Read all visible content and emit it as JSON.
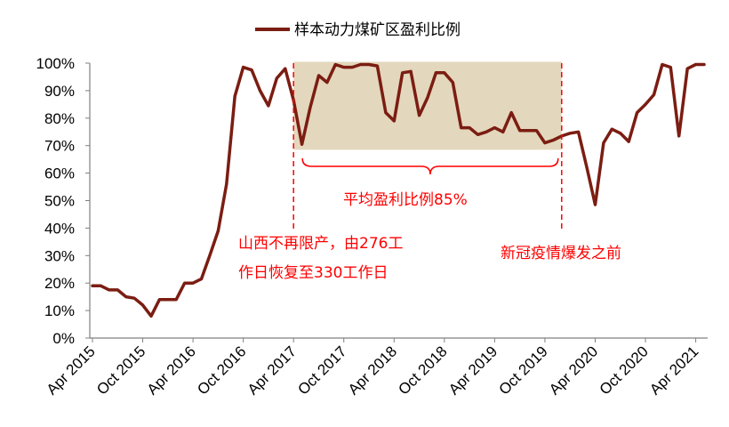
{
  "chart_data": {
    "type": "line",
    "title": "",
    "xlabel": "",
    "ylabel": "",
    "ylim": [
      0,
      100
    ],
    "yticks": [
      "0%",
      "10%",
      "20%",
      "30%",
      "40%",
      "50%",
      "60%",
      "70%",
      "80%",
      "90%",
      "100%"
    ],
    "xticks": [
      "Apr 2015",
      "Oct 2015",
      "Apr 2016",
      "Oct 2016",
      "Apr 2017",
      "Oct 2017",
      "Apr 2018",
      "Oct 2018",
      "Apr 2019",
      "Oct 2019",
      "Apr 2020",
      "Oct 2020",
      "Apr 2021"
    ],
    "legend": {
      "position": "top-center"
    },
    "series": [
      {
        "name": "样本动力煤矿区盈利比例",
        "color": "#7B1D12",
        "x": [
          "2015-04",
          "2015-05",
          "2015-06",
          "2015-07",
          "2015-08",
          "2015-09",
          "2015-10",
          "2015-11",
          "2015-12",
          "2016-01",
          "2016-02",
          "2016-03",
          "2016-04",
          "2016-05",
          "2016-06",
          "2016-07",
          "2016-08",
          "2016-09",
          "2016-10",
          "2016-11",
          "2016-12",
          "2017-01",
          "2017-02",
          "2017-03",
          "2017-04",
          "2017-05",
          "2017-06",
          "2017-07",
          "2017-08",
          "2017-09",
          "2017-10",
          "2017-11",
          "2017-12",
          "2018-01",
          "2018-02",
          "2018-03",
          "2018-04",
          "2018-05",
          "2018-06",
          "2018-07",
          "2018-08",
          "2018-09",
          "2018-10",
          "2018-11",
          "2018-12",
          "2019-01",
          "2019-02",
          "2019-03",
          "2019-04",
          "2019-05",
          "2019-06",
          "2019-07",
          "2019-08",
          "2019-09",
          "2019-10",
          "2019-11",
          "2019-12",
          "2020-01",
          "2020-02",
          "2020-03",
          "2020-04",
          "2020-05",
          "2020-06",
          "2020-07",
          "2020-08",
          "2020-09",
          "2020-10",
          "2020-11",
          "2020-12",
          "2021-01",
          "2021-02",
          "2021-03",
          "2021-04",
          "2021-05"
        ],
        "values": [
          19,
          19,
          17.5,
          17.5,
          15,
          14.5,
          12,
          8,
          14,
          14,
          14,
          20,
          20,
          21.5,
          30,
          39,
          56,
          88,
          98.5,
          97.5,
          90,
          84.5,
          94.5,
          98,
          86.5,
          70.5,
          84,
          95.5,
          93,
          99.5,
          98.5,
          98.5,
          99.5,
          99.5,
          99,
          82,
          79,
          96.5,
          97,
          81,
          87.5,
          96.5,
          96.5,
          93,
          76.5,
          76.5,
          74,
          75,
          76.5,
          75,
          82,
          75.5,
          75.5,
          75.5,
          71,
          72,
          73.5,
          74.5,
          75,
          62,
          48.5,
          71,
          76,
          74.5,
          71.5,
          82,
          85,
          88.5,
          99.5,
          98.5,
          73.5,
          98,
          99.5,
          99.5
        ]
      }
    ],
    "highlight_region": {
      "from": "2017-04",
      "to": "2019-12",
      "y_from": 68.5,
      "y_to": 100.5,
      "color": "#E3D7BD"
    },
    "markers": [
      {
        "x": "2017-04",
        "color": "#FF0000",
        "style": "dashed"
      },
      {
        "x": "2019-12",
        "color": "#FF0000",
        "style": "dashed"
      }
    ],
    "brace": {
      "from": "2017-04",
      "to": "2019-12",
      "color": "#FF0000"
    },
    "annotations": {
      "average": "平均盈利比例85%",
      "left_line1": "山西不再限产，由276工",
      "left_line2": "作日恢复至330工作日",
      "right": "新冠疫情爆发之前"
    }
  }
}
